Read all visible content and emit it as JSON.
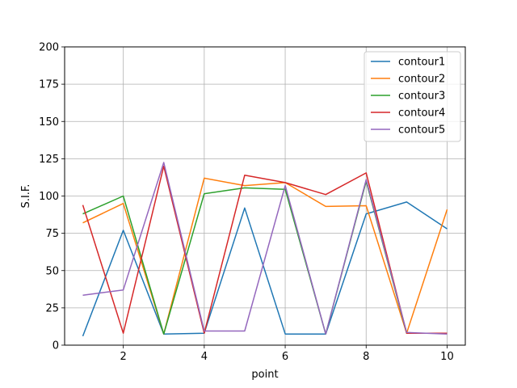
{
  "chart_data": {
    "type": "line",
    "xlabel": "point",
    "ylabel": "S.I.F.",
    "xlim": [
      0.55,
      10.45
    ],
    "ylim": [
      0,
      200
    ],
    "x_ticks": [
      "2",
      "4",
      "6",
      "8",
      "10"
    ],
    "y_ticks": [
      "0",
      "25",
      "50",
      "75",
      "100",
      "125",
      "150",
      "175",
      "200"
    ],
    "grid": true,
    "legend_position": "top-right",
    "x": [
      1,
      2,
      3,
      4,
      5,
      6,
      7,
      8,
      9,
      10
    ],
    "series": [
      {
        "name": "contour1",
        "color": "#1f77b4",
        "values": [
          6,
          77,
          7.5,
          8,
          92,
          7.5,
          7.5,
          88,
          96,
          78
        ]
      },
      {
        "name": "contour2",
        "color": "#ff7f0e",
        "values": [
          82,
          95,
          7.5,
          112,
          107,
          109,
          93,
          93.5,
          8,
          91
        ]
      },
      {
        "name": "contour3",
        "color": "#2ca02c",
        "values": [
          88,
          100,
          7.5,
          101.5,
          105.5,
          104.5,
          7.5,
          110,
          8,
          8
        ]
      },
      {
        "name": "contour4",
        "color": "#d62728",
        "values": [
          94,
          8,
          120,
          8,
          114,
          109,
          101,
          115.5,
          8,
          8
        ]
      },
      {
        "name": "contour5",
        "color": "#9467bd",
        "values": [
          33.5,
          37,
          122.5,
          9.5,
          9.5,
          107,
          7.5,
          111,
          8.5,
          7.5
        ]
      }
    ]
  }
}
